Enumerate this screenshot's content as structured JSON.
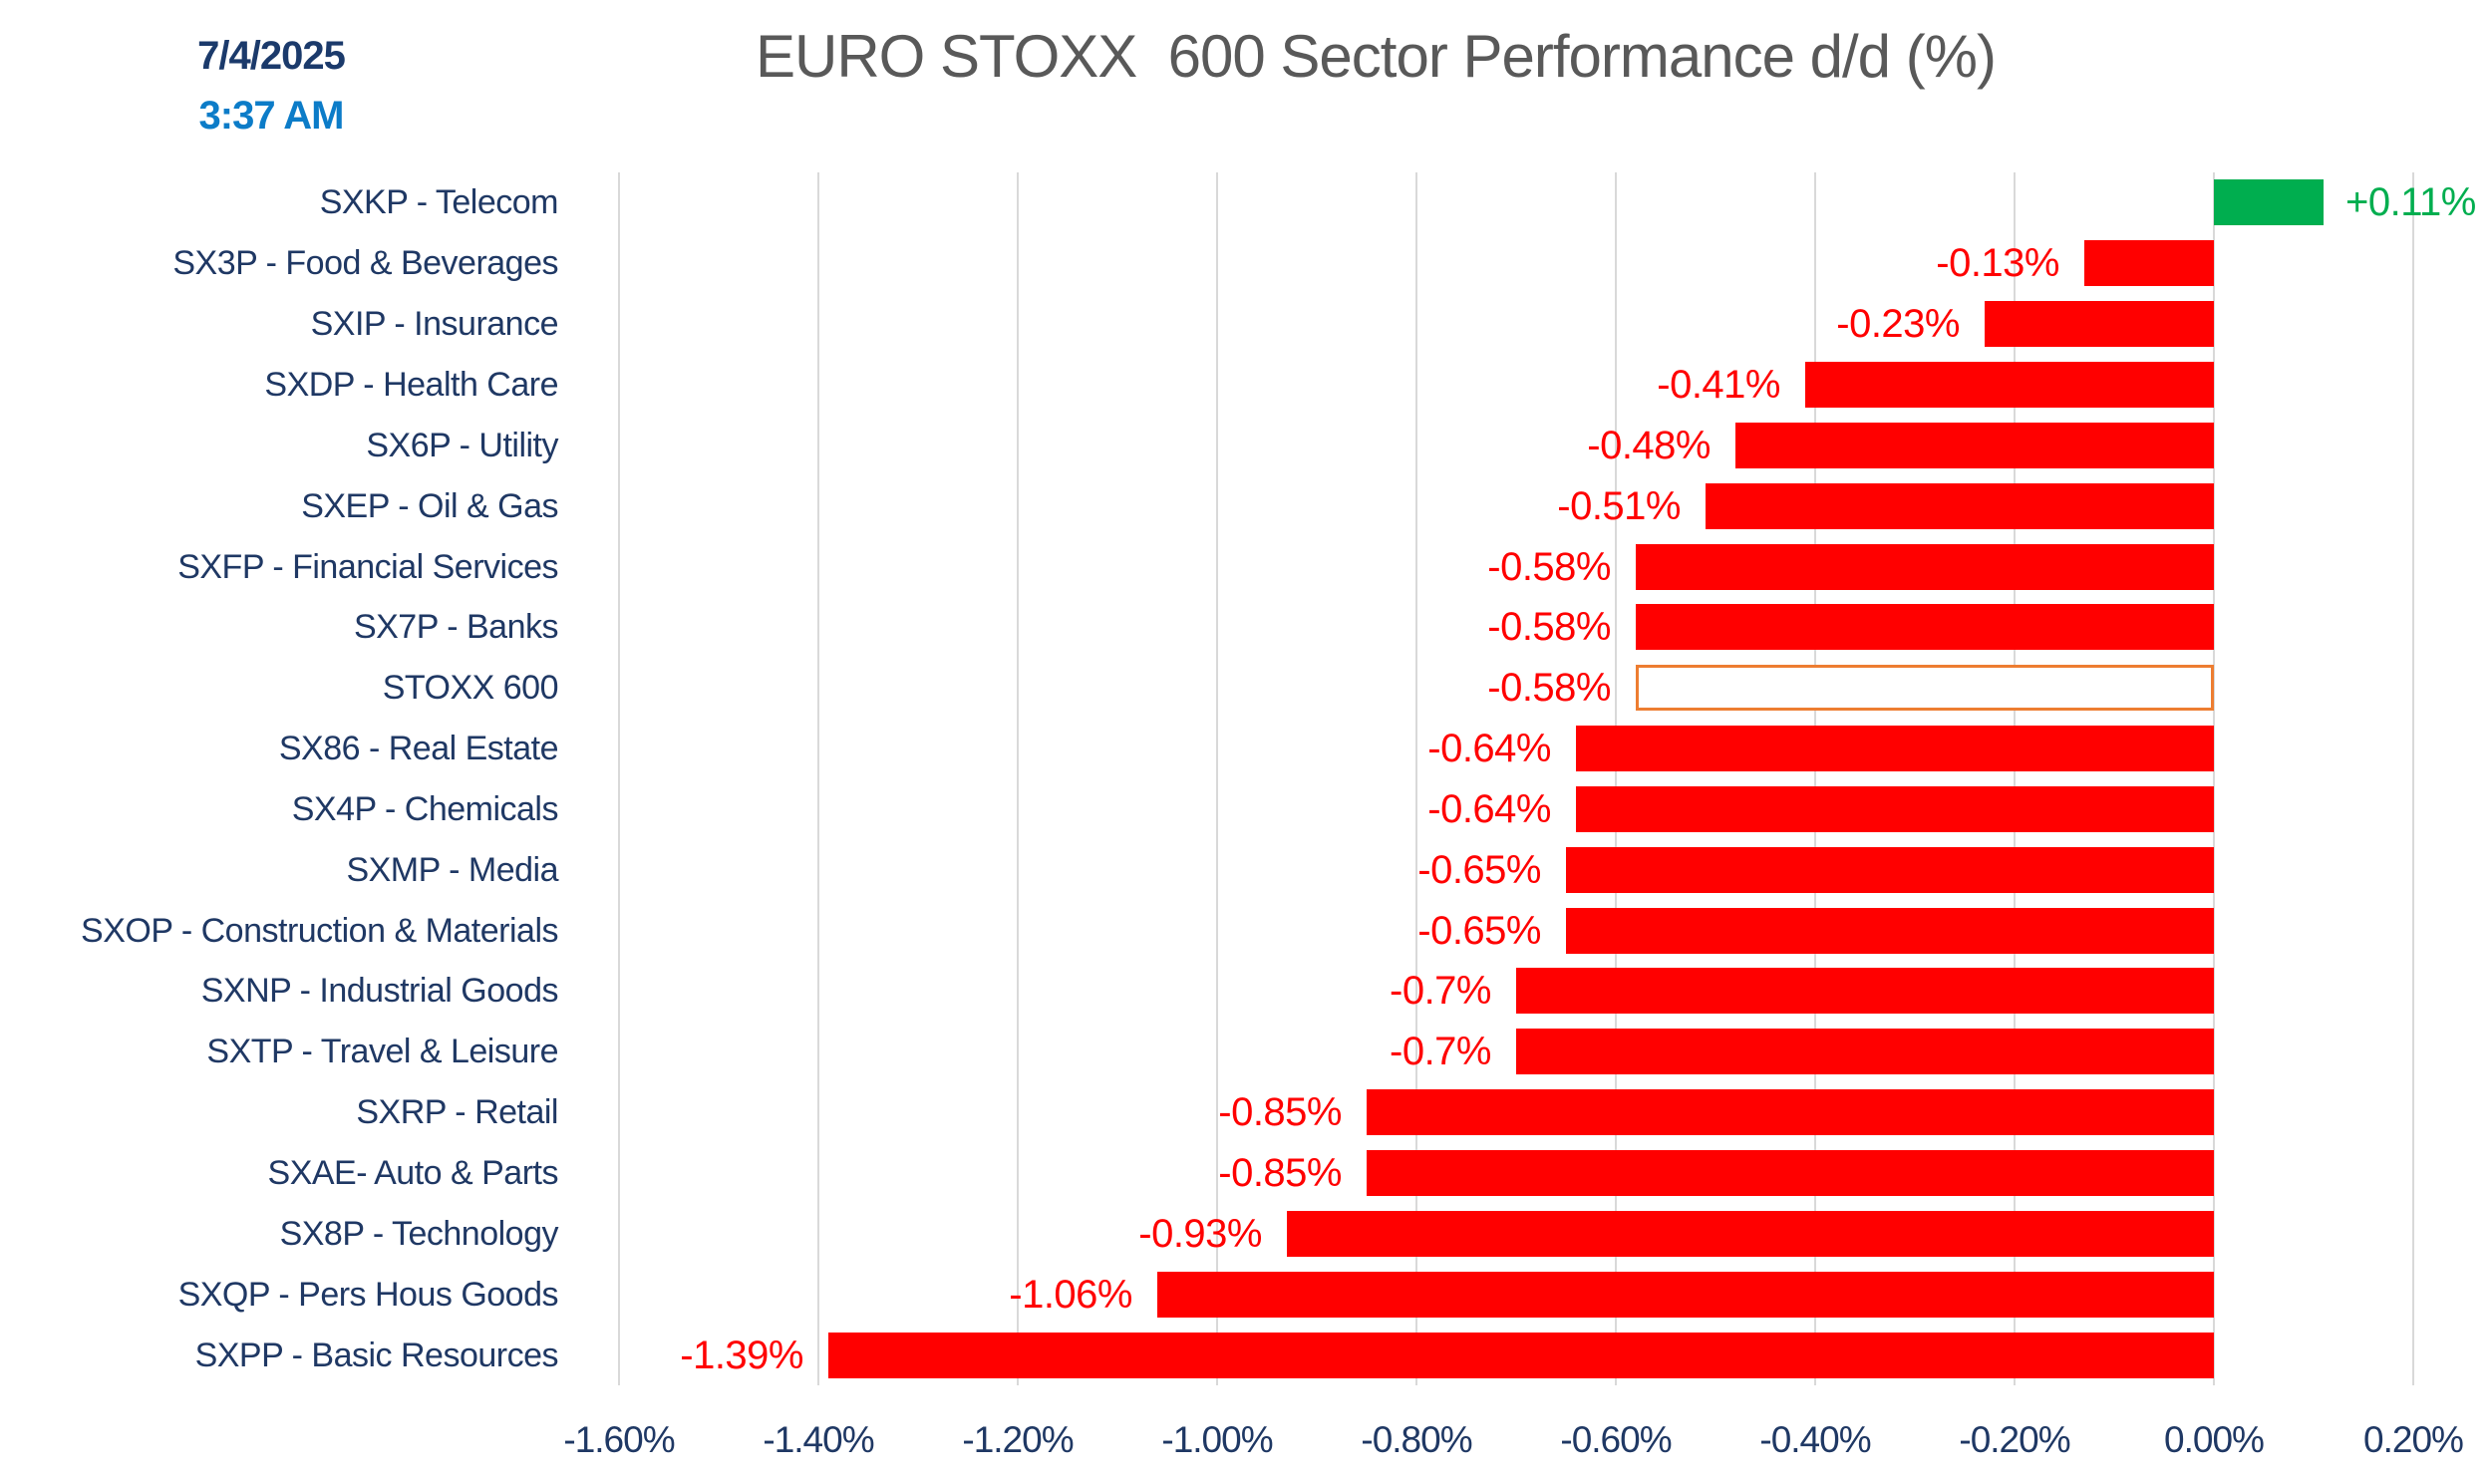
{
  "header": {
    "date": "7/4/2025",
    "time": "3:37 AM",
    "title": "EURO STOXX  600 Sector Performance d/d (%)"
  },
  "chart_data": {
    "type": "bar",
    "orientation": "horizontal",
    "title": "EURO STOXX  600 Sector Performance d/d (%)",
    "xlabel": "",
    "ylabel": "",
    "xlim": [
      -1.6,
      0.2
    ],
    "grid": true,
    "x_ticks": [
      {
        "label": "-1.60%",
        "value": -1.6
      },
      {
        "label": "-1.40%",
        "value": -1.4
      },
      {
        "label": "-1.20%",
        "value": -1.2
      },
      {
        "label": "-1.00%",
        "value": -1.0
      },
      {
        "label": "-0.80%",
        "value": -0.8
      },
      {
        "label": "-0.60%",
        "value": -0.6
      },
      {
        "label": "-0.40%",
        "value": -0.4
      },
      {
        "label": "-0.20%",
        "value": -0.2
      },
      {
        "label": "0.00%",
        "value": 0.0
      },
      {
        "label": "0.20%",
        "value": 0.2
      }
    ],
    "rows": [
      {
        "category": "SXKP - Telecom",
        "value": 0.11,
        "label": "+0.11%",
        "style": "positive"
      },
      {
        "category": "SX3P - Food & Beverages",
        "value": -0.13,
        "label": "-0.13%",
        "style": "negative"
      },
      {
        "category": "SXIP - Insurance",
        "value": -0.23,
        "label": "-0.23%",
        "style": "negative"
      },
      {
        "category": "SXDP - Health Care",
        "value": -0.41,
        "label": "-0.41%",
        "style": "negative"
      },
      {
        "category": "SX6P - Utility",
        "value": -0.48,
        "label": "-0.48%",
        "style": "negative"
      },
      {
        "category": "SXEP - Oil & Gas",
        "value": -0.51,
        "label": "-0.51%",
        "style": "negative"
      },
      {
        "category": "SXFP - Financial Services",
        "value": -0.58,
        "label": "-0.58%",
        "style": "negative"
      },
      {
        "category": "SX7P - Banks",
        "value": -0.58,
        "label": "-0.58%",
        "style": "negative"
      },
      {
        "category": "STOXX 600",
        "value": -0.58,
        "label": "-0.58%",
        "style": "benchmark"
      },
      {
        "category": "SX86 - Real Estate",
        "value": -0.64,
        "label": "-0.64%",
        "style": "negative"
      },
      {
        "category": "SX4P - Chemicals",
        "value": -0.64,
        "label": "-0.64%",
        "style": "negative"
      },
      {
        "category": "SXMP - Media",
        "value": -0.65,
        "label": "-0.65%",
        "style": "negative"
      },
      {
        "category": "SXOP - Construction & Materials",
        "value": -0.65,
        "label": "-0.65%",
        "style": "negative"
      },
      {
        "category": "SXNP - Industrial Goods",
        "value": -0.7,
        "label": "-0.7%",
        "style": "negative"
      },
      {
        "category": "SXTP - Travel & Leisure",
        "value": -0.7,
        "label": "-0.7%",
        "style": "negative"
      },
      {
        "category": "SXRP - Retail",
        "value": -0.85,
        "label": "-0.85%",
        "style": "negative"
      },
      {
        "category": "SXAE- Auto & Parts",
        "value": -0.85,
        "label": "-0.85%",
        "style": "negative"
      },
      {
        "category": "SX8P - Technology",
        "value": -0.93,
        "label": "-0.93%",
        "style": "negative"
      },
      {
        "category": "SXQP - Pers Hous Goods",
        "value": -1.06,
        "label": "-1.06%",
        "style": "negative"
      },
      {
        "category": "SXPP - Basic Resources",
        "value": -1.39,
        "label": "-1.39%",
        "style": "negative"
      }
    ],
    "colors": {
      "negative_bar": "#FF0000",
      "positive_bar": "#00AE4F",
      "negative_text": "#FF0000",
      "positive_text": "#00AE4F",
      "benchmark_border": "#ED7D31",
      "benchmark_fill": "#FFFFFF",
      "grid": "#D9D9D9",
      "category_text": "#1F3864",
      "axis_text": "#1F3864",
      "date_text": "#1B3A6B",
      "time_text": "#0C7CC8",
      "title_text": "#595959"
    }
  }
}
